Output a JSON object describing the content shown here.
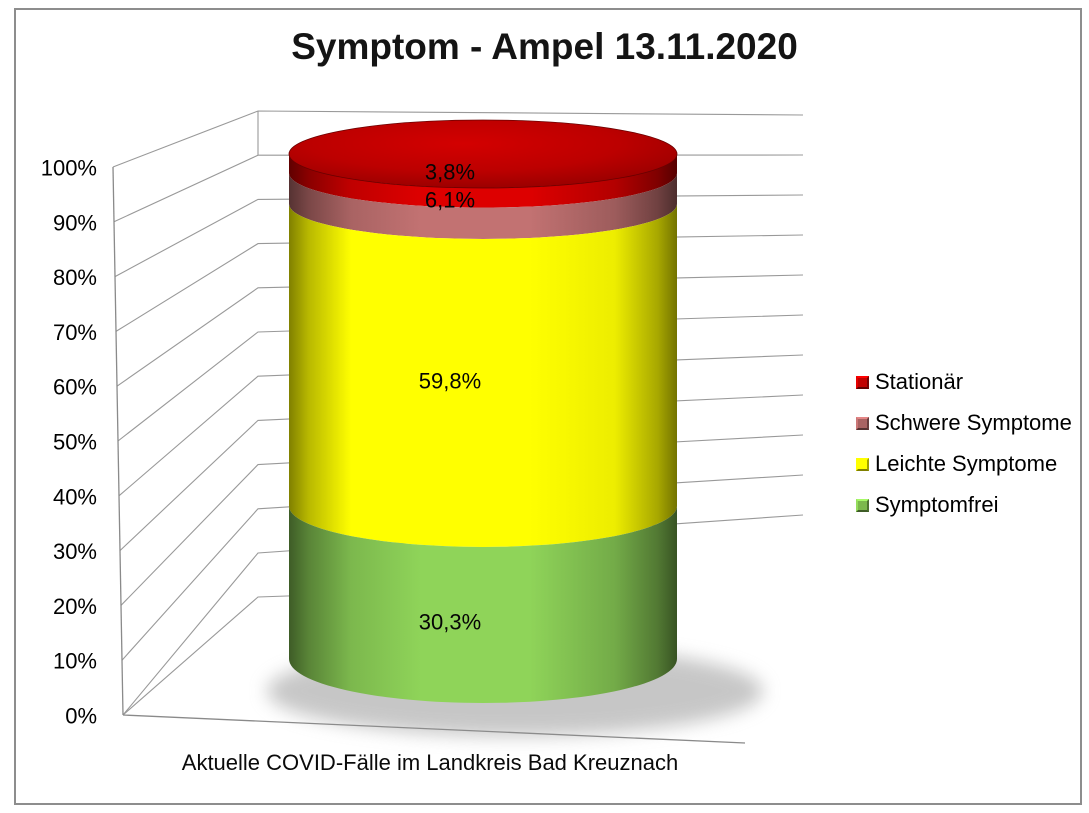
{
  "title": "Symptom - Ampel 13.11.2020",
  "xlabel": "Aktuelle COVID-Fälle im Landkreis Bad Kreuznach",
  "chart_data": {
    "type": "bar",
    "subtype": "3d-stacked-cylinder-100pct",
    "title": "Symptom - Ampel 13.11.2020",
    "categories": [
      "Aktuelle COVID-Fälle im Landkreis Bad Kreuznach"
    ],
    "series": [
      {
        "name": "Stationär",
        "values": [
          3.8
        ],
        "label": "3,8%",
        "color": "#C00000"
      },
      {
        "name": "Schwere Symptome",
        "values": [
          6.1
        ],
        "label": "6,1%",
        "color": "#A96363"
      },
      {
        "name": "Leichte Symptome",
        "values": [
          59.8
        ],
        "label": "59,8%",
        "color": "#FFFF00"
      },
      {
        "name": "Symptomfrei",
        "values": [
          30.3
        ],
        "label": "30,3%",
        "color": "#7CB84D"
      }
    ],
    "stack_order": "top-to-bottom",
    "yticks": [
      "100%",
      "90%",
      "80%",
      "70%",
      "60%",
      "50%",
      "40%",
      "30%",
      "20%",
      "10%",
      "0%"
    ],
    "ylim": [
      0,
      100
    ],
    "grid": true,
    "legend_position": "right",
    "legend": [
      "Stationär",
      "Schwere Symptome",
      "Leichte Symptome",
      "Symptomfrei"
    ],
    "grid_color": "#999999",
    "axis_color": "#8a8a8a",
    "text_color": "#000000"
  }
}
